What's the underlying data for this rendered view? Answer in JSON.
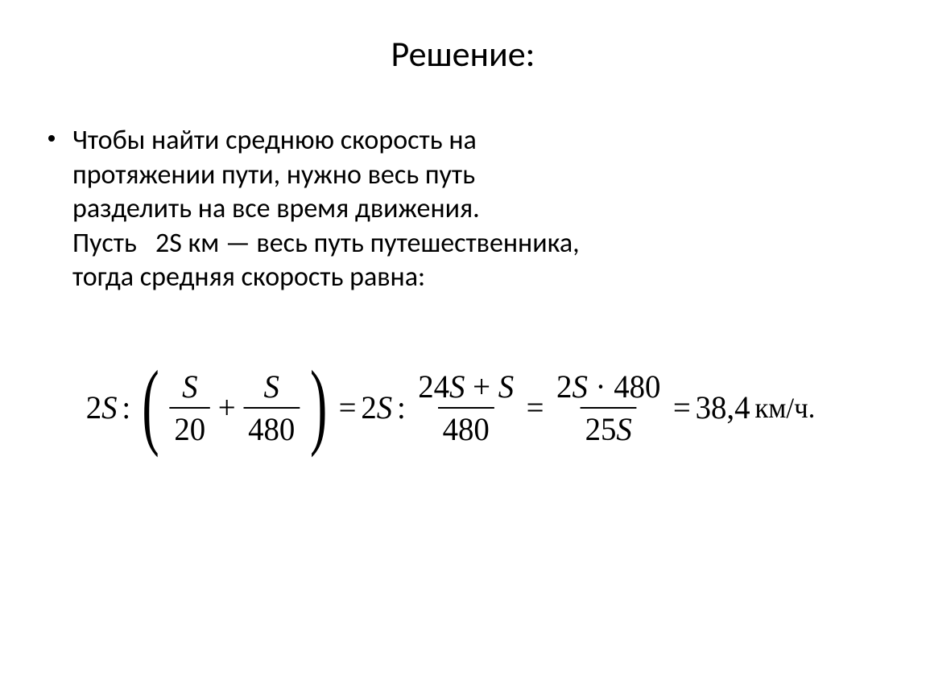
{
  "slide": {
    "title": "Решение:",
    "paragraph": {
      "line1": "Чтобы найти среднюю скорость на",
      "line2": "протяжении пути, нужно весь путь",
      "line3": "разделить на все время движения.",
      "line4_a": "Пусть",
      "line4_b": "2S км — весь путь путешественника,",
      "line5": "тогда средняя скорость равна:"
    },
    "formula": {
      "twoS": "2",
      "S": "S",
      "colon": ":",
      "plus": "+",
      "eq": "=",
      "den1": "20",
      "den2": "480",
      "num2a": "24",
      "num2_plus": "+",
      "den3": "480",
      "num3a": "2",
      "num3_dot": "·",
      "num3b": "480",
      "den4a": "25",
      "result": "38,4",
      "unit": "км/ч."
    },
    "style": {
      "background": "#ffffff",
      "text_color": "#000000",
      "title_fontsize": 44,
      "body_fontsize": 34,
      "formula_fontsize": 40,
      "formula_font": "Times New Roman",
      "body_font": "Calibri"
    }
  }
}
